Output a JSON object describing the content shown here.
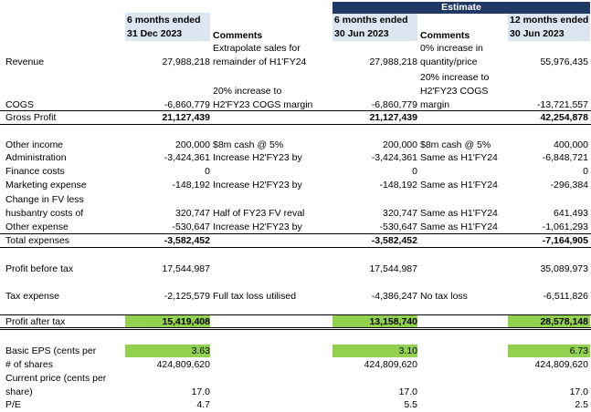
{
  "header": {
    "estimate": "Estimate",
    "col1_l1": "6 months ended",
    "col1_l2": "31 Dec 2023",
    "col2": "Comments",
    "col3_l1": "6 months ended",
    "col3_l2": "30 Jun 2023",
    "col4": "Comments",
    "col5_l1": "12 months ended",
    "col5_l2": "30 Jun 2023"
  },
  "rows": {
    "revenue": {
      "label": "Revenue",
      "v1": "27,988,218",
      "c1a": "Extrapolate sales for",
      "c1b": "remainder of H1'FY24",
      "v2": "27,988,218",
      "c2a": "0% increase in",
      "c2b": "quantity/price",
      "v3": "55,976,435"
    },
    "cogs": {
      "label": "COGS",
      "v1": "-6,860,779",
      "c1a": "20% increase to",
      "c1b": "H2'FY23 COGS margin",
      "v2": "-6,860,779",
      "c2a": "20% increase to",
      "c2b": "H2'FY23 COGS",
      "c2c": "margin",
      "v3": "-13,721,557"
    },
    "gross": {
      "label": "Gross Profit",
      "v1": "21,127,439",
      "v2": "21,127,439",
      "v3": "42,254,878"
    },
    "other_income": {
      "label": "Other income",
      "v1": "200,000",
      "c1": "$8m cash @ 5%",
      "v2": "200,000",
      "c2": "$8m cash @ 5%",
      "v3": "400,000"
    },
    "admin": {
      "label": "Administration",
      "v1": "-3,424,361",
      "c1": "Increase H2'FY23 by",
      "v2": "-3,424,361",
      "c2": "Same as H1'FY24",
      "v3": "-6,848,721"
    },
    "finance": {
      "label": "Finance costs",
      "v1": "0",
      "v2": "0",
      "v3": "0"
    },
    "marketing": {
      "label": "Marketing expense",
      "v1": "-148,192",
      "c1": "Increase H2'FY23 by",
      "v2": "-148,192",
      "c2": "Same as H1'FY24",
      "v3": "-296,384"
    },
    "fv": {
      "label_a": "Change in FV less",
      "label_b": "husbantry costs of",
      "v1": "320,747",
      "c1": "Half of FY23 FV reval",
      "v2": "320,747",
      "c2": "Same as H1'FY24",
      "v3": "641,493"
    },
    "other_exp": {
      "label": "Other expense",
      "v1": "-530,647",
      "c1": "Increase H2'FY23 by",
      "v2": "-530,647",
      "c2": "Same as H1'FY24",
      "v3": "-1,061,293"
    },
    "total_exp": {
      "label": "Total expenses",
      "v1": "-3,582,452",
      "v2": "-3,582,452",
      "v3": "-7,164,905"
    },
    "pbt": {
      "label": "Profit before tax",
      "v1": "17,544,987",
      "v2": "17,544,987",
      "v3": "35,089,973"
    },
    "tax": {
      "label": "Tax expense",
      "v1": "-2,125,579",
      "c1": "Full tax loss utilised",
      "v2": "-4,386,247",
      "c2": "No tax loss",
      "v3": "-6,511,826"
    },
    "pat": {
      "label": "Profit after tax",
      "v1": "15,419,408",
      "v2": "13,158,740",
      "v3": "28,578,148"
    },
    "eps": {
      "label": "Basic EPS (cents per",
      "v1": "3.63",
      "v2": "3.10",
      "v3": "6.73"
    },
    "shares": {
      "label": "# of shares",
      "v1": "424,809,620",
      "v2": "424,809,620",
      "v3": "424,809,620"
    },
    "price": {
      "label_a": "Current price (cents per",
      "label_b": "share)",
      "v1": "17.0",
      "v2": "17.0",
      "v3": "17.0"
    },
    "pe": {
      "label": "P/E",
      "v1": "4.7",
      "v2": "5.5",
      "v3": "2.5"
    }
  },
  "colors": {
    "header_fill": "#dce6f1",
    "estimate_fill": "#1f3864",
    "green_fill": "#92d050"
  }
}
